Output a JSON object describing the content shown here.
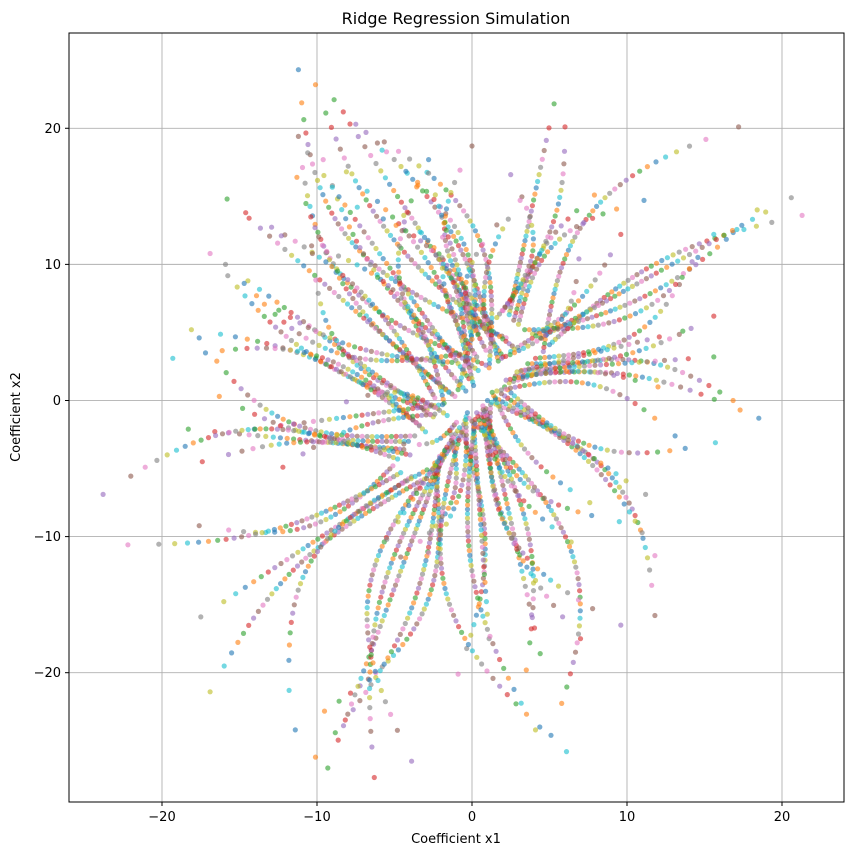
{
  "chart_data": {
    "type": "scatter",
    "title": "Ridge Regression Simulation",
    "xlabel": "Coefficient x1",
    "ylabel": "Coefficient x2",
    "xlim": [
      -26,
      24
    ],
    "ylim": [
      -29.5,
      27
    ],
    "xticks": [
      -20,
      -10,
      0,
      10,
      20
    ],
    "yticks": [
      -20,
      -10,
      0,
      10,
      20
    ],
    "xtick_labels": [
      "−20",
      "−10",
      "0",
      "10",
      "20"
    ],
    "ytick_labels": [
      "−20",
      "−10",
      "0",
      "10",
      "20"
    ],
    "grid": true,
    "marker_alpha": 0.6,
    "colors": [
      "#1f77b4",
      "#ff7f0e",
      "#2ca02c",
      "#d62728",
      "#9467bd",
      "#8c564b",
      "#e377c2",
      "#7f7f7f",
      "#bcbd22",
      "#17becf"
    ],
    "series": [
      {
        "start": [
          -11.2,
          24.3
        ],
        "end": [
          2.2,
          4.6
        ]
      },
      {
        "start": [
          -10.1,
          23.2
        ],
        "end": [
          2.6,
          4.0
        ]
      },
      {
        "start": [
          -8.9,
          22.1
        ],
        "end": [
          2.0,
          3.2
        ]
      },
      {
        "start": [
          -8.3,
          21.2
        ],
        "end": [
          1.7,
          2.9
        ]
      },
      {
        "start": [
          -7.5,
          20.3
        ],
        "end": [
          1.1,
          2.4
        ]
      },
      {
        "start": [
          -11.2,
          19.4
        ],
        "end": [
          0.9,
          2.6
        ]
      },
      {
        "start": [
          -9.6,
          17.7
        ],
        "end": [
          0.4,
          2.2
        ]
      },
      {
        "start": [
          -10.6,
          18.2
        ],
        "end": [
          -0.2,
          1.6
        ]
      },
      {
        "start": [
          -8.1,
          16.8
        ],
        "end": [
          0.1,
          1.1
        ]
      },
      {
        "start": [
          -5.8,
          18.4
        ],
        "end": [
          -0.9,
          0.8
        ]
      },
      {
        "start": [
          -2.8,
          17.7
        ],
        "end": [
          -0.4,
          0.7
        ]
      },
      {
        "start": [
          -11.3,
          16.4
        ],
        "end": [
          -1.1,
          0.3
        ]
      },
      {
        "start": [
          -15.8,
          14.8
        ],
        "end": [
          -1.5,
          0.6
        ]
      },
      {
        "start": [
          -14.6,
          13.8
        ],
        "end": [
          -2.4,
          0.2
        ]
      },
      {
        "start": [
          -12.3,
          12.1
        ],
        "end": [
          -1.8,
          -0.2
        ]
      },
      {
        "start": [
          -10.3,
          10.8
        ],
        "end": [
          -2.2,
          -0.6
        ]
      },
      {
        "start": [
          -16.9,
          10.8
        ],
        "end": [
          -2.9,
          -0.7
        ]
      },
      {
        "start": [
          -15.9,
          10.0
        ],
        "end": [
          -2.5,
          -1.2
        ]
      },
      {
        "start": [
          -18.1,
          5.2
        ],
        "end": [
          -3.4,
          -1.8
        ]
      },
      {
        "start": [
          -19.3,
          3.1
        ],
        "end": [
          -3.0,
          -2.3
        ]
      },
      {
        "start": [
          -17.6,
          4.6
        ],
        "end": [
          -3.7,
          -2.6
        ]
      },
      {
        "start": [
          -16.3,
          0.3
        ],
        "end": [
          -4.1,
          -3.0
        ]
      },
      {
        "start": [
          -18.3,
          -2.1
        ],
        "end": [
          -4.4,
          -3.6
        ]
      },
      {
        "start": [
          -17.4,
          -4.5
        ],
        "end": [
          -4.0,
          -4.0
        ]
      },
      {
        "start": [
          -23.8,
          -6.9
        ],
        "end": [
          -4.8,
          -4.3
        ]
      },
      {
        "start": [
          -17.6,
          -9.2
        ],
        "end": [
          -5.1,
          -4.8
        ]
      },
      {
        "start": [
          -22.2,
          -10.6
        ],
        "end": [
          -4.6,
          -5.3
        ]
      },
      {
        "start": [
          -17.5,
          -15.9
        ],
        "end": [
          -3.9,
          -5.6
        ]
      },
      {
        "start": [
          -16.9,
          -21.4
        ],
        "end": [
          -3.3,
          -5.9
        ]
      },
      {
        "start": [
          -11.8,
          -21.3
        ],
        "end": [
          -2.9,
          -5.1
        ]
      },
      {
        "start": [
          -11.4,
          -24.2
        ],
        "end": [
          -2.4,
          -4.6
        ]
      },
      {
        "start": [
          -10.1,
          -26.2
        ],
        "end": [
          -2.1,
          -4.1
        ]
      },
      {
        "start": [
          -9.3,
          -27.0
        ],
        "end": [
          -1.7,
          -3.6
        ]
      },
      {
        "start": [
          -6.3,
          -27.7
        ],
        "end": [
          -1.3,
          -3.2
        ]
      },
      {
        "start": [
          -3.9,
          -26.5
        ],
        "end": [
          -0.9,
          -2.8
        ]
      },
      {
        "start": [
          -4.6,
          -11.5
        ],
        "end": [
          -1.4,
          -2.2
        ]
      },
      {
        "start": [
          -0.9,
          -20.1
        ],
        "end": [
          -0.6,
          -2.3
        ]
      },
      {
        "start": [
          1.1,
          -17.5
        ],
        "end": [
          0.1,
          -1.8
        ]
      },
      {
        "start": [
          4.1,
          -24.2
        ],
        "end": [
          0.2,
          -1.4
        ]
      },
      {
        "start": [
          6.1,
          -25.8
        ],
        "end": [
          -0.3,
          -0.9
        ]
      },
      {
        "start": [
          5.1,
          -24.6
        ],
        "end": [
          -0.2,
          -1.3
        ]
      },
      {
        "start": [
          3.5,
          -19.8
        ],
        "end": [
          0.5,
          -1.0
        ]
      },
      {
        "start": [
          4.4,
          -18.6
        ],
        "end": [
          0.9,
          -0.6
        ]
      },
      {
        "start": [
          7.0,
          -17.5
        ],
        "end": [
          0.7,
          -0.4
        ]
      },
      {
        "start": [
          9.6,
          -16.5
        ],
        "end": [
          1.2,
          -0.3
        ]
      },
      {
        "start": [
          11.8,
          -15.8
        ],
        "end": [
          1.0,
          0.0
        ]
      },
      {
        "start": [
          11.8,
          -11.4
        ],
        "end": [
          1.5,
          0.2
        ]
      },
      {
        "start": [
          11.2,
          -6.9
        ],
        "end": [
          1.9,
          0.5
        ]
      },
      {
        "start": [
          7.6,
          -7.5
        ],
        "end": [
          1.3,
          0.6
        ]
      },
      {
        "start": [
          15.7,
          -3.1
        ],
        "end": [
          2.1,
          1.0
        ]
      },
      {
        "start": [
          18.5,
          -1.3
        ],
        "end": [
          2.4,
          1.3
        ]
      },
      {
        "start": [
          17.3,
          -0.7
        ],
        "end": [
          2.8,
          1.8
        ]
      },
      {
        "start": [
          15.6,
          3.2
        ],
        "end": [
          3.2,
          2.2
        ]
      },
      {
        "start": [
          15.6,
          6.2
        ],
        "end": [
          3.6,
          2.7
        ]
      },
      {
        "start": [
          14.2,
          10.2
        ],
        "end": [
          4.1,
          3.1
        ]
      },
      {
        "start": [
          17.2,
          20.1
        ],
        "end": [
          4.6,
          3.6
        ]
      },
      {
        "start": [
          21.3,
          13.6
        ],
        "end": [
          5.0,
          4.1
        ]
      },
      {
        "start": [
          20.6,
          14.9
        ],
        "end": [
          4.4,
          4.6
        ]
      },
      {
        "start": [
          18.4,
          14.0
        ],
        "end": [
          3.9,
          4.9
        ]
      },
      {
        "start": [
          15.6,
          12.2
        ],
        "end": [
          3.4,
          5.2
        ]
      },
      {
        "start": [
          11.1,
          14.7
        ],
        "end": [
          3.0,
          5.6
        ]
      },
      {
        "start": [
          7.9,
          15.1
        ],
        "end": [
          2.7,
          5.9
        ]
      },
      {
        "start": [
          5.3,
          21.8
        ],
        "end": [
          2.4,
          6.3
        ]
      },
      {
        "start": [
          6.0,
          20.1
        ],
        "end": [
          2.0,
          6.6
        ]
      },
      {
        "start": [
          2.5,
          16.6
        ],
        "end": [
          1.6,
          6.1
        ]
      },
      {
        "start": [
          0.0,
          18.7
        ],
        "end": [
          1.2,
          5.7
        ]
      },
      {
        "start": [
          3.1,
          14.7
        ],
        "end": [
          0.8,
          5.3
        ]
      },
      {
        "start": [
          -2.8,
          16.7
        ],
        "end": [
          0.4,
          4.9
        ]
      },
      {
        "start": [
          -4.4,
          13.6
        ],
        "end": [
          0.0,
          4.5
        ]
      },
      {
        "start": [
          -7.4,
          14.2
        ],
        "end": [
          -0.4,
          3.9
        ]
      },
      {
        "start": [
          -14.7,
          8.6
        ],
        "end": [
          -0.8,
          3.4
        ]
      },
      {
        "start": [
          -13.9,
          7.7
        ],
        "end": [
          -1.3,
          2.8
        ]
      },
      {
        "start": [
          -14.0,
          -2.1
        ],
        "end": [
          -1.9,
          -0.3
        ]
      },
      {
        "start": [
          -12.2,
          -4.9
        ],
        "end": [
          -2.4,
          -1.0
        ]
      },
      {
        "start": [
          -8.1,
          -0.1
        ],
        "end": [
          -1.6,
          -1.1
        ]
      },
      {
        "start": [
          -4.4,
          -3.2
        ],
        "end": [
          -1.0,
          -1.6
        ]
      },
      {
        "start": [
          -2.8,
          -11.2
        ],
        "end": [
          -0.4,
          -1.4
        ]
      },
      {
        "start": [
          -5.5,
          -10.2
        ],
        "end": [
          -0.8,
          -2.0
        ]
      },
      {
        "start": [
          6.4,
          -10.4
        ],
        "end": [
          0.3,
          -0.9
        ]
      },
      {
        "start": [
          9.5,
          -8.9
        ],
        "end": [
          0.8,
          -0.8
        ]
      },
      {
        "start": [
          13.1,
          -2.6
        ],
        "end": [
          1.6,
          0.7
        ]
      },
      {
        "start": [
          12.0,
          1.0
        ],
        "end": [
          2.2,
          1.5
        ]
      },
      {
        "start": [
          13.6,
          5.1
        ],
        "end": [
          2.9,
          2.1
        ]
      },
      {
        "start": [
          9.6,
          12.2
        ],
        "end": [
          2.5,
          3.6
        ]
      },
      {
        "start": [
          6.9,
          10.4
        ],
        "end": [
          1.9,
          3.1
        ]
      },
      {
        "start": [
          1.6,
          12.9
        ],
        "end": [
          0.9,
          3.7
        ]
      },
      {
        "start": [
          -1.9,
          12.0
        ],
        "end": [
          0.3,
          3.2
        ]
      }
    ]
  }
}
